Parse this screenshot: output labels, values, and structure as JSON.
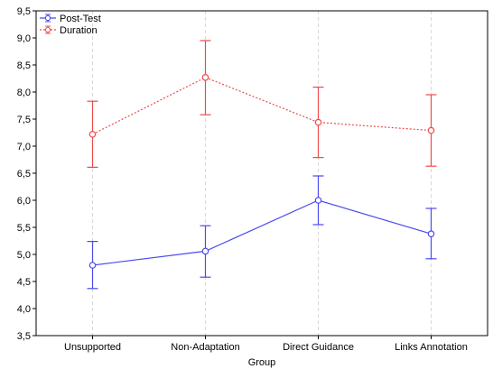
{
  "chart_data": {
    "type": "line",
    "xlabel": "Group",
    "ylabel": "",
    "categories": [
      "Unsupported",
      "Non-Adaptation",
      "Direct Guidance",
      "Links Annotation"
    ],
    "ylim": [
      3.5,
      9.5
    ],
    "yticks": [
      3.5,
      4.0,
      4.5,
      5.0,
      5.5,
      6.0,
      6.5,
      7.0,
      7.5,
      8.0,
      8.5,
      9.0,
      9.5
    ],
    "ytick_labels": [
      "3,5",
      "4,0",
      "4,5",
      "5,0",
      "5,5",
      "6,0",
      "6,5",
      "7,0",
      "7,5",
      "8,0",
      "8,5",
      "9,0",
      "9,5"
    ],
    "grid": "vertical dashed",
    "legend_position": "top-left",
    "series": [
      {
        "name": "Post-Test",
        "color": "#4a4aee",
        "line_style": "solid",
        "values": [
          4.8,
          5.06,
          6.0,
          5.38
        ],
        "lower": [
          4.37,
          4.58,
          5.55,
          4.92
        ],
        "upper": [
          5.24,
          5.53,
          6.45,
          5.85
        ]
      },
      {
        "name": "Duration",
        "color": "#ee4a4a",
        "line_style": "dotted",
        "values": [
          7.22,
          8.27,
          7.44,
          7.29
        ],
        "lower": [
          6.61,
          7.58,
          6.79,
          6.63
        ],
        "upper": [
          7.83,
          8.95,
          8.09,
          7.95
        ]
      }
    ]
  }
}
